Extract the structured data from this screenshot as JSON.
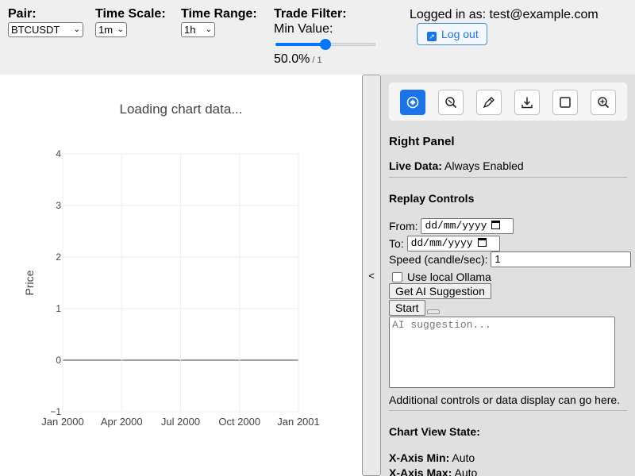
{
  "controls": {
    "pair": {
      "label": "Pair:",
      "value": "BTCUSDT"
    },
    "time_scale": {
      "label": "Time Scale:",
      "value": "1m"
    },
    "time_range": {
      "label": "Time Range:",
      "value": "1h"
    },
    "trade_filter": {
      "label": "Trade Filter:",
      "sublabel": "Min Value:",
      "value_text": "50.0%",
      "max_text": "/ 1",
      "level": 0.5
    },
    "logged_in_text": "Logged in as: test@example.com",
    "logout_label": "Log out"
  },
  "chart": {
    "loading_text": "Loading chart data...",
    "chart_data": {
      "type": "line",
      "title": "Loading chart data...",
      "ylabel": "Price",
      "x_ticks": [
        "Jan 2000",
        "Apr 2000",
        "Jul 2000",
        "Oct 2000",
        "Jan 2001"
      ],
      "y_ticks": [
        "−1",
        "0",
        "1",
        "2",
        "3",
        "4"
      ],
      "ylim": [
        -1,
        4
      ],
      "series": [],
      "grid": true
    }
  },
  "toggle_label": "<",
  "right_panel": {
    "toolbar_icons": [
      "pan-icon",
      "zoom-select-icon",
      "draw-icon",
      "download-icon",
      "select-box-icon",
      "zoom-reset-icon"
    ],
    "accent": "#1a73e8",
    "title": "Right Panel",
    "live_data_label": "Live Data:",
    "live_data_value": "Always Enabled",
    "replay_heading": "Replay Controls",
    "from_label": "From:",
    "to_label": "To:",
    "date_placeholder": "dd/mm/yyyy",
    "speed_label": "Speed (candle/sec):",
    "speed_value": "1",
    "ollama_label": "Use local Ollama",
    "ai_button": "Get AI Suggestion",
    "start_button": "Start",
    "ai_placeholder": "AI suggestion...",
    "additional_text": "Additional controls or data display can go here.",
    "view_state_heading": "Chart View State:",
    "x_min_label": "X-Axis Min:",
    "x_min_value": "Auto",
    "x_max_label": "X-Axis Max:",
    "x_max_value": "Auto"
  }
}
